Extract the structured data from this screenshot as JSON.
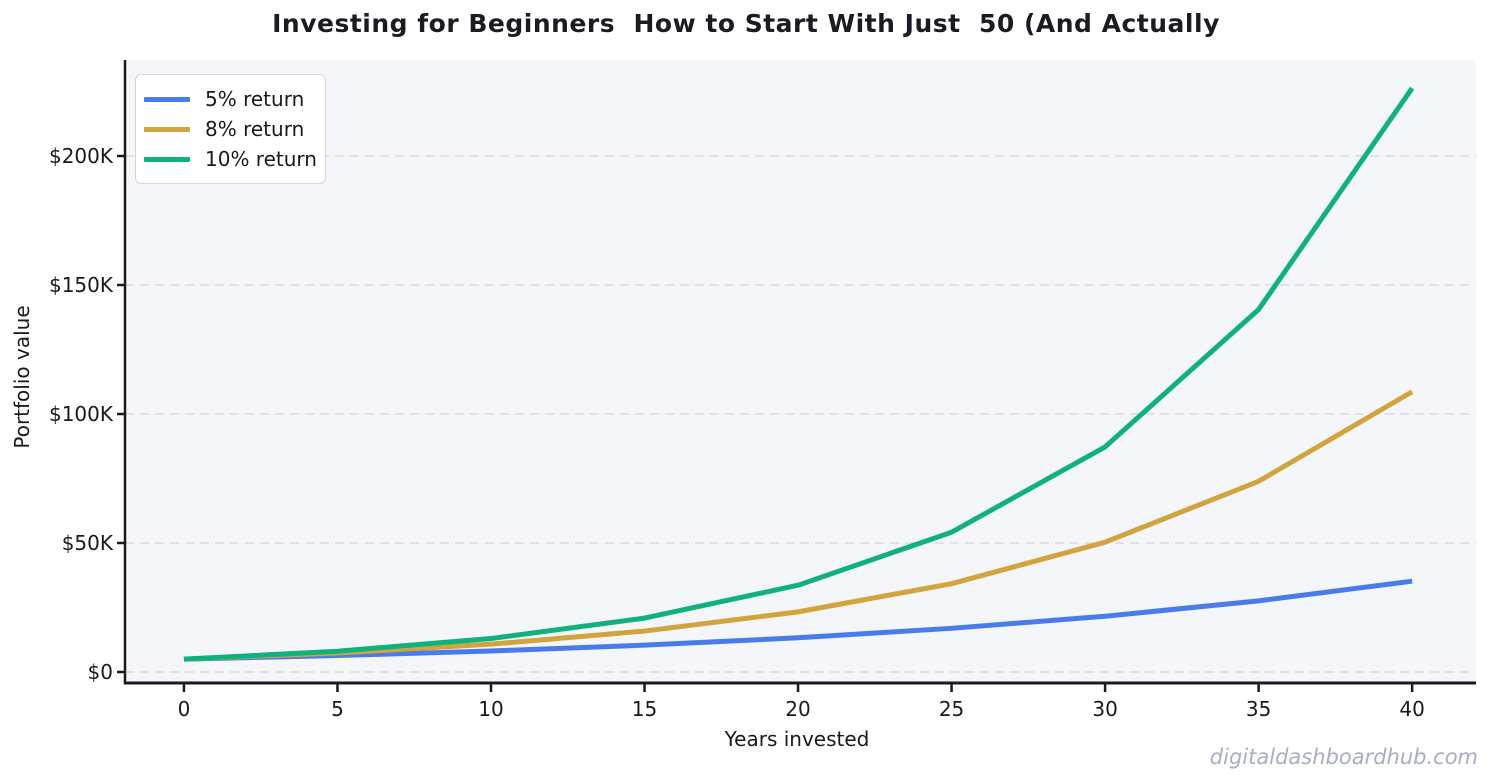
{
  "page": {
    "watermark": "digitaldashboardhub.com"
  },
  "colors": {
    "plot_bg": "#f4f6f9",
    "grid": "#dcdcdc",
    "axis": "#1a1a1f",
    "text": "#1a1a1a",
    "title": "#1b1b22",
    "watermark": "#a9aec0",
    "legend_border": "#d5d5d5",
    "legend_bg": "#ffffff"
  },
  "chart_data": {
    "type": "line",
    "title": "Investing for Beginners  How to Start With Just  50 (And Actually",
    "xlabel": "Years invested",
    "ylabel": "Portfolio value",
    "x": [
      0,
      5,
      10,
      15,
      20,
      25,
      30,
      35,
      40
    ],
    "series": [
      {
        "name": "5% return",
        "color": "#4a7bea",
        "values": [
          5000,
          6381,
          8144,
          10395,
          13266,
          16932,
          21610,
          27580,
          35200
        ]
      },
      {
        "name": "8% return",
        "color": "#d2a43e",
        "values": [
          5000,
          7347,
          10795,
          15861,
          23305,
          34242,
          50313,
          73927,
          108623
        ]
      },
      {
        "name": "10% return",
        "color": "#10b27b",
        "values": [
          5000,
          8053,
          12969,
          20886,
          33638,
          54174,
          87247,
          140512,
          226296
        ]
      }
    ],
    "xtick_labels": [
      "0",
      "5",
      "10",
      "15",
      "20",
      "25",
      "30",
      "35",
      "40"
    ],
    "xtick_values": [
      0,
      5,
      10,
      15,
      20,
      25,
      30,
      35,
      40
    ],
    "ytick_labels": [
      "$0",
      "$50K",
      "$100K",
      "$150K",
      "$200K"
    ],
    "ytick_values": [
      0,
      50000,
      100000,
      150000,
      200000
    ],
    "xlim": [
      -1.92,
      42.08
    ],
    "ylim": [
      -4264,
      237209
    ],
    "grid": "horizontal-dashed",
    "legend_position": "upper-left"
  }
}
